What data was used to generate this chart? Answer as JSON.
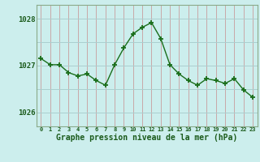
{
  "x": [
    0,
    1,
    2,
    3,
    4,
    5,
    6,
    7,
    8,
    9,
    10,
    11,
    12,
    13,
    14,
    15,
    16,
    17,
    18,
    19,
    20,
    21,
    22,
    23
  ],
  "y": [
    1027.15,
    1027.02,
    1027.02,
    1026.85,
    1026.78,
    1026.82,
    1026.68,
    1026.58,
    1027.02,
    1027.38,
    1027.68,
    1027.82,
    1027.92,
    1027.58,
    1027.02,
    1026.82,
    1026.68,
    1026.58,
    1026.72,
    1026.68,
    1026.62,
    1026.72,
    1026.48,
    1026.32
  ],
  "line_color": "#1a6e1a",
  "marker_color": "#1a6e1a",
  "bg_color": "#cceeed",
  "vgrid_color": "#c8a8a8",
  "hgrid_color": "#aacfcf",
  "border_color": "#8aaa8a",
  "text_color": "#1a5a1a",
  "xlabel": "Graphe pression niveau de la mer (hPa)",
  "yticks": [
    1026,
    1027,
    1028
  ],
  "xtick_labels": [
    "0",
    "1",
    "2",
    "3",
    "4",
    "5",
    "6",
    "7",
    "8",
    "9",
    "10",
    "11",
    "12",
    "13",
    "14",
    "15",
    "16",
    "17",
    "18",
    "19",
    "20",
    "21",
    "22",
    "23"
  ],
  "ylim": [
    1025.7,
    1028.3
  ],
  "xlim": [
    -0.5,
    23.5
  ]
}
